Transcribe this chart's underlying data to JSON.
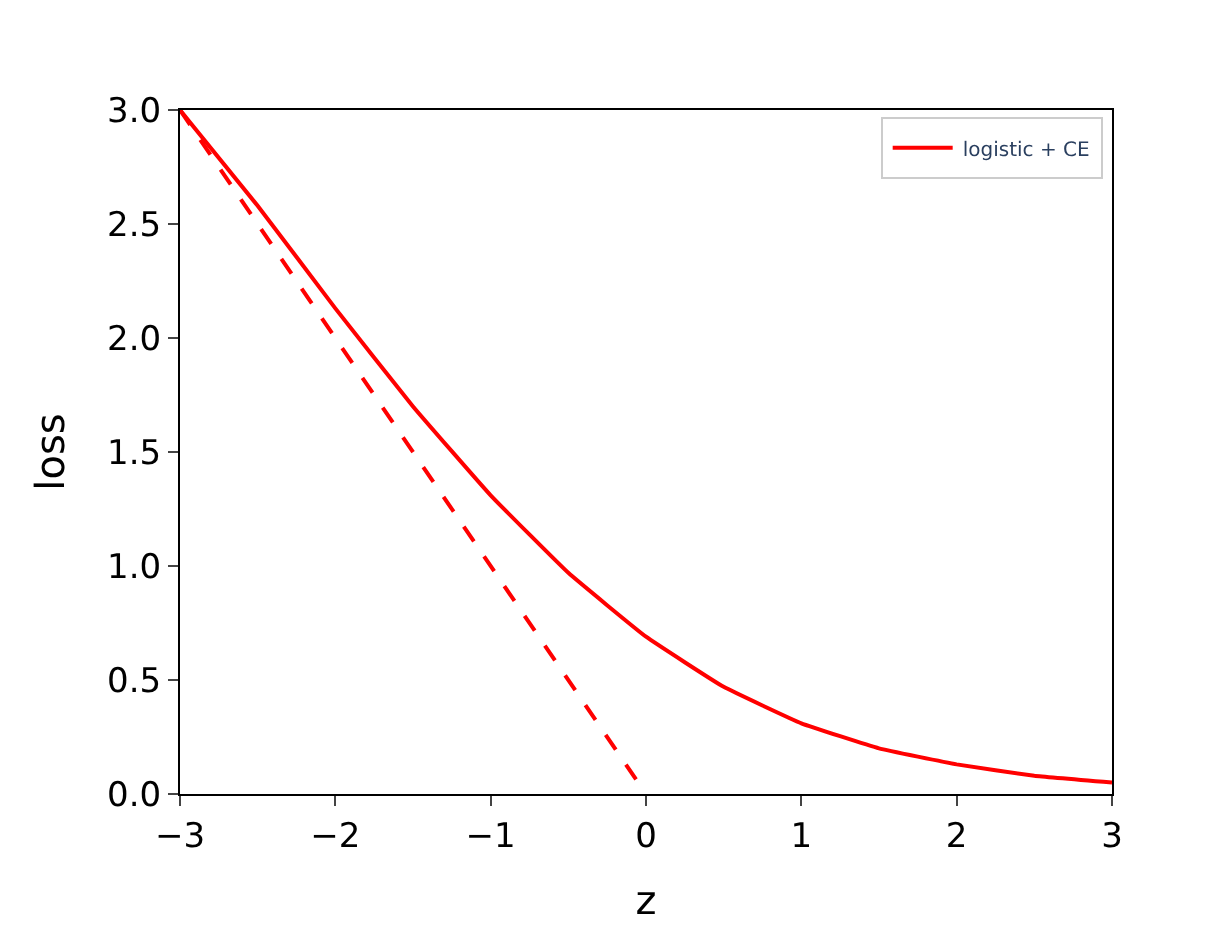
{
  "chart_data": {
    "type": "line",
    "xlabel": "z",
    "ylabel": "loss",
    "x": [
      -3,
      -2.5,
      -2,
      -1.5,
      -1,
      -0.5,
      0,
      0.5,
      1,
      1.5,
      2,
      2.5,
      3
    ],
    "series": [
      {
        "name": "logistic + CE",
        "color": "#ff0000",
        "line_style": "solid",
        "values": [
          3.0,
          2.58,
          2.13,
          1.7,
          1.31,
          0.97,
          0.69,
          0.47,
          0.31,
          0.2,
          0.13,
          0.08,
          0.05
        ]
      },
      {
        "color": "#ff0000",
        "line_style": "dashed",
        "x": [
          -3,
          0
        ],
        "values": [
          3.0,
          0.0
        ]
      }
    ],
    "xlim": [
      -3,
      3
    ],
    "ylim": [
      0,
      3
    ],
    "xticks": [
      {
        "value": -3,
        "label": "−3"
      },
      {
        "value": -2,
        "label": "−2"
      },
      {
        "value": -1,
        "label": "−1"
      },
      0,
      1,
      2,
      3
    ],
    "yticks": [
      {
        "value": 0,
        "label": "0.0"
      },
      {
        "value": 0.5,
        "label": "0.5"
      },
      {
        "value": 1,
        "label": "1.0"
      },
      {
        "value": 1.5,
        "label": "1.5"
      },
      {
        "value": 2,
        "label": "2.0"
      },
      {
        "value": 2.5,
        "label": "2.5"
      },
      {
        "value": 3,
        "label": "3.0"
      }
    ],
    "legend": "top right"
  }
}
